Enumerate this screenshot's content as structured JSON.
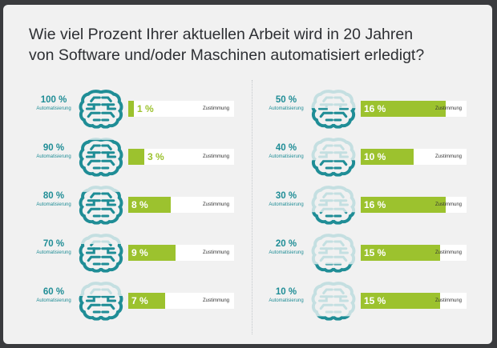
{
  "title_line1": "Wie viel Prozent Ihrer aktuellen Arbeit wird in 20 Jahren",
  "title_line2": "von Software und/oder Maschinen automatisiert erledigt?",
  "level_label": "Automatisierung",
  "bar_label": "Zustimmung",
  "colors": {
    "teal": "#1f8d96",
    "teal_light": "#c4dfe1",
    "green": "#9cc22e",
    "track": "#ffffff",
    "background": "#f1f1f1"
  },
  "chart_data": {
    "type": "bar",
    "title": "Wie viel Prozent Ihrer aktuellen Arbeit wird in 20 Jahren von Software und/oder Maschinen automatisiert erledigt?",
    "categories": [
      "100 %",
      "90 %",
      "80 %",
      "70 %",
      "60 %",
      "50 %",
      "40 %",
      "30 %",
      "20 %",
      "10 %"
    ],
    "automation_levels": [
      100,
      90,
      80,
      70,
      60,
      50,
      40,
      30,
      20,
      10
    ],
    "values": [
      1,
      3,
      8,
      9,
      7,
      16,
      10,
      16,
      15,
      15
    ],
    "value_labels": [
      "1 %",
      "3 %",
      "8 %",
      "9 %",
      "7 %",
      "16 %",
      "10 %",
      "16 %",
      "15 %",
      "15 %"
    ],
    "value_unit": "%",
    "xlim": [
      0,
      20
    ],
    "legend": "none",
    "grid": false
  }
}
